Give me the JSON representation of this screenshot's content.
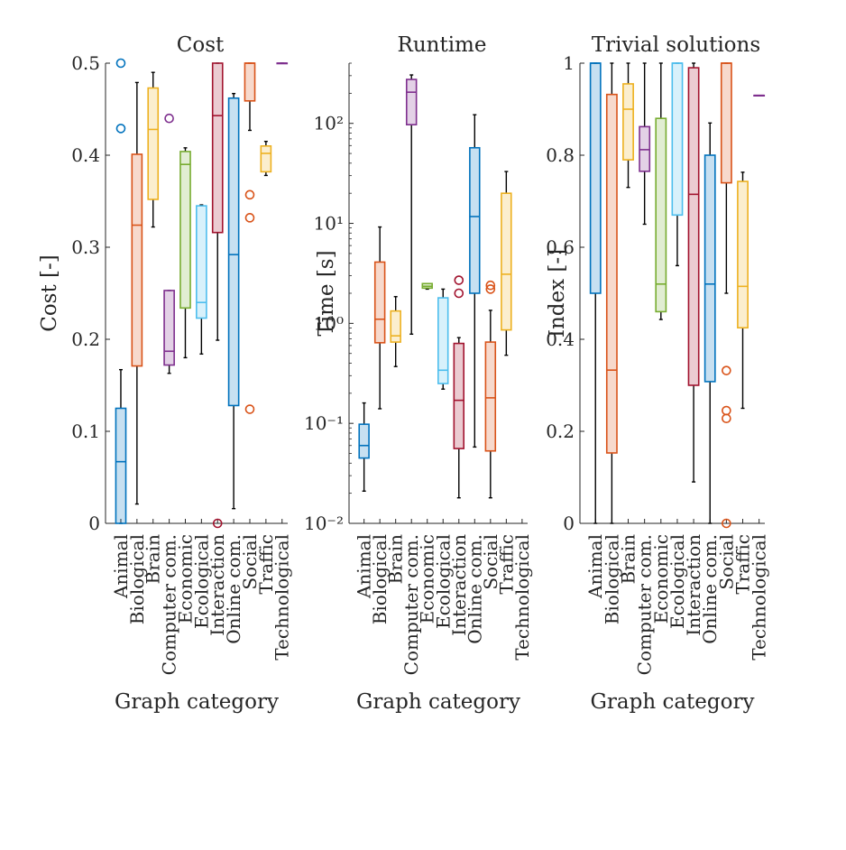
{
  "categories": [
    "Animal",
    "Biological",
    "Brain",
    "Computer com.",
    "Economic",
    "Ecological",
    "Interaction",
    "Online com.",
    "Social",
    "Traffic",
    "Technological"
  ],
  "colors": [
    "#0072BD",
    "#D95319",
    "#EDB120",
    "#7E2F8E",
    "#77AC30",
    "#4DBEEE",
    "#A2142F",
    "#0072BD",
    "#D95319",
    "#EDB120",
    "#7E2F8E"
  ],
  "chart_data": [
    {
      "type": "box",
      "title": "Cost",
      "xlabel": "Graph category",
      "ylabel": "Cost [-]",
      "yscale": "linear",
      "ylim": [
        0,
        0.5
      ],
      "yticks": [
        0,
        0.1,
        0.2,
        0.3,
        0.4,
        0.5
      ],
      "ytick_labels": [
        "0",
        "0.1",
        "0.2",
        "0.3",
        "0.4",
        "0.5"
      ],
      "boxes": [
        {
          "category": "Animal",
          "wlo": 0,
          "q1": 0,
          "med": 0.067,
          "q3": 0.125,
          "whi": 0.167,
          "outliers": [
            0.429,
            0.5
          ]
        },
        {
          "category": "Biological",
          "wlo": 0.021,
          "q1": 0.171,
          "med": 0.324,
          "q3": 0.401,
          "whi": 0.479,
          "outliers": []
        },
        {
          "category": "Brain",
          "wlo": 0.322,
          "q1": 0.352,
          "med": 0.428,
          "q3": 0.473,
          "whi": 0.49,
          "outliers": []
        },
        {
          "category": "Computer com.",
          "wlo": 0.163,
          "q1": 0.172,
          "med": 0.187,
          "q3": 0.253,
          "whi": 0.253,
          "outliers": [
            0.44
          ]
        },
        {
          "category": "Economic",
          "wlo": 0.18,
          "q1": 0.234,
          "med": 0.39,
          "q3": 0.404,
          "whi": 0.408,
          "outliers": []
        },
        {
          "category": "Ecological",
          "wlo": 0.184,
          "q1": 0.223,
          "med": 0.24,
          "q3": 0.345,
          "whi": 0.346,
          "outliers": []
        },
        {
          "category": "Interaction",
          "wlo": 0.199,
          "q1": 0.316,
          "med": 0.443,
          "q3": 0.5,
          "whi": 0.5,
          "outliers": [
            0
          ]
        },
        {
          "category": "Online com.",
          "wlo": 0.016,
          "q1": 0.128,
          "med": 0.292,
          "q3": 0.462,
          "whi": 0.467,
          "outliers": []
        },
        {
          "category": "Social",
          "wlo": 0.427,
          "q1": 0.459,
          "med": 0.5,
          "q3": 0.5,
          "whi": 0.5,
          "outliers": [
            0.124,
            0.332,
            0.357
          ]
        },
        {
          "category": "Traffic",
          "wlo": 0.378,
          "q1": 0.382,
          "med": 0.402,
          "q3": 0.41,
          "whi": 0.415,
          "outliers": []
        },
        {
          "category": "Technological",
          "wlo": 0.5,
          "q1": 0.5,
          "med": 0.5,
          "q3": 0.5,
          "whi": 0.5,
          "outliers": []
        }
      ]
    },
    {
      "type": "box",
      "title": "Runtime",
      "xlabel": "Graph category",
      "ylabel": "Time [s]",
      "yscale": "log",
      "ylim": [
        0.01,
        400
      ],
      "yticks": [
        0.01,
        0.1,
        1,
        10,
        100
      ],
      "ytick_labels": [
        "10⁻²",
        "10⁻¹",
        "10⁰",
        "10¹",
        "10²"
      ],
      "boxes": [
        {
          "category": "Animal",
          "wlo": 0.021,
          "q1": 0.045,
          "med": 0.06,
          "q3": 0.098,
          "whi": 0.16,
          "outliers": []
        },
        {
          "category": "Biological",
          "wlo": 0.14,
          "q1": 0.64,
          "med": 1.1,
          "q3": 4.1,
          "whi": 9.2,
          "outliers": []
        },
        {
          "category": "Brain",
          "wlo": 0.37,
          "q1": 0.65,
          "med": 0.75,
          "q3": 1.33,
          "whi": 1.85,
          "outliers": []
        },
        {
          "category": "Computer com.",
          "wlo": 0.78,
          "q1": 97,
          "med": 205,
          "q3": 275,
          "whi": 305,
          "outliers": []
        },
        {
          "category": "Economic",
          "wlo": 2.2,
          "q1": 2.25,
          "med": 2.35,
          "q3": 2.5,
          "whi": 2.5,
          "outliers": []
        },
        {
          "category": "Ecological",
          "wlo": 0.22,
          "q1": 0.25,
          "med": 0.34,
          "q3": 1.8,
          "whi": 2.2,
          "outliers": []
        },
        {
          "category": "Interaction",
          "wlo": 0.018,
          "q1": 0.056,
          "med": 0.17,
          "q3": 0.63,
          "whi": 0.72,
          "outliers": [
            2.0,
            2.7
          ]
        },
        {
          "category": "Online com.",
          "wlo": 0.058,
          "q1": 2.0,
          "med": 11.7,
          "q3": 57,
          "whi": 122,
          "outliers": []
        },
        {
          "category": "Social",
          "wlo": 0.018,
          "q1": 0.053,
          "med": 0.18,
          "q3": 0.65,
          "whi": 1.35,
          "outliers": [
            2.2,
            2.4
          ]
        },
        {
          "category": "Traffic",
          "wlo": 0.48,
          "q1": 0.86,
          "med": 3.1,
          "q3": 20,
          "whi": 33,
          "outliers": []
        },
        {
          "category": "Technological",
          "wlo": null,
          "q1": null,
          "med": null,
          "q3": null,
          "whi": null,
          "outliers": []
        }
      ]
    },
    {
      "type": "box",
      "title": "Trivial solutions",
      "xlabel": "Graph category",
      "ylabel": "Index [-]",
      "yscale": "linear",
      "ylim": [
        0,
        1
      ],
      "yticks": [
        0,
        0.2,
        0.4,
        0.6,
        0.8,
        1
      ],
      "ytick_labels": [
        "0",
        "0.2",
        "0.4",
        "0.6",
        "0.8",
        "1"
      ],
      "boxes": [
        {
          "category": "Animal",
          "wlo": 0,
          "q1": 0.5,
          "med": 1,
          "q3": 1,
          "whi": 1,
          "outliers": []
        },
        {
          "category": "Biological",
          "wlo": 0,
          "q1": 0.153,
          "med": 0.333,
          "q3": 0.932,
          "whi": 1,
          "outliers": []
        },
        {
          "category": "Brain",
          "wlo": 0.73,
          "q1": 0.79,
          "med": 0.9,
          "q3": 0.955,
          "whi": 1,
          "outliers": []
        },
        {
          "category": "Computer com.",
          "wlo": 0.65,
          "q1": 0.765,
          "med": 0.812,
          "q3": 0.862,
          "whi": 1,
          "outliers": []
        },
        {
          "category": "Economic",
          "wlo": 0.443,
          "q1": 0.46,
          "med": 0.52,
          "q3": 0.88,
          "whi": 1,
          "outliers": []
        },
        {
          "category": "Ecological",
          "wlo": 0.56,
          "q1": 0.67,
          "med": 1,
          "q3": 1,
          "whi": 1,
          "outliers": []
        },
        {
          "category": "Interaction",
          "wlo": 0.09,
          "q1": 0.3,
          "med": 0.715,
          "q3": 0.99,
          "whi": 1,
          "outliers": []
        },
        {
          "category": "Online com.",
          "wlo": 0,
          "q1": 0.308,
          "med": 0.52,
          "q3": 0.8,
          "whi": 0.87,
          "outliers": []
        },
        {
          "category": "Social",
          "wlo": 0.5,
          "q1": 0.74,
          "med": 1,
          "q3": 1,
          "whi": 1,
          "outliers": [
            0,
            0.228,
            0.245,
            0.332
          ]
        },
        {
          "category": "Traffic",
          "wlo": 0.25,
          "q1": 0.425,
          "med": 0.515,
          "q3": 0.743,
          "whi": 0.763,
          "outliers": []
        },
        {
          "category": "Technological",
          "wlo": 0.93,
          "q1": 0.93,
          "med": 0.93,
          "q3": 0.93,
          "whi": 0.93,
          "outliers": []
        }
      ]
    }
  ]
}
